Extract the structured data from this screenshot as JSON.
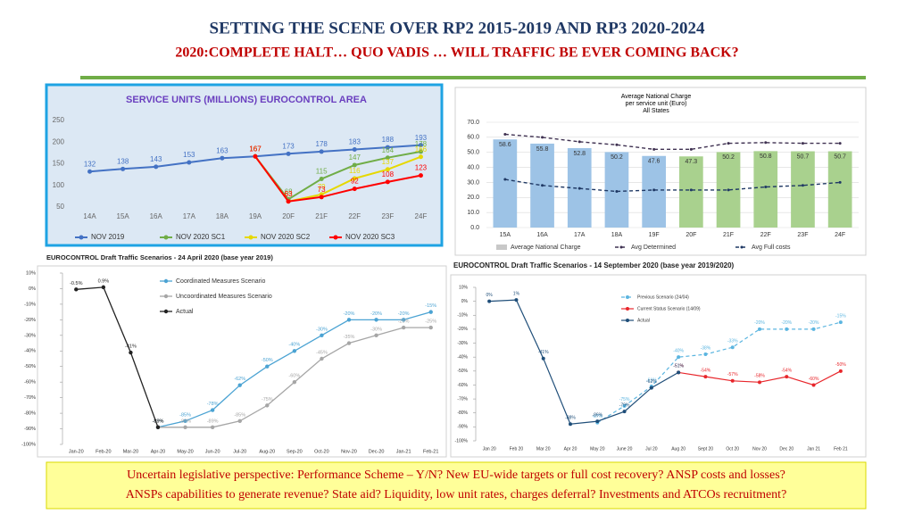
{
  "title": "SETTING THE SCENE OVER RP2 2015-2019 AND RP3 2020-2024",
  "subtitle": "2020:COMPLETE HALT… QUO VADIS … WILL TRAFFIC BE EVER COMING BACK?",
  "footer": [
    "Uncertain legislative perspective: Performance Scheme – Y/N? New EU-wide targets or full cost recovery? ANSP costs and losses?",
    "ANSPs capabilities to generate revenue? State aid? Liquidity, low unit rates, charges deferral? Investments and ATCOs recruitment?"
  ],
  "chart_data": [
    {
      "type": "line",
      "title": "SERVICE UNITS (MILLIONS) EUROCONTROL AREA",
      "categories": [
        "14A",
        "15A",
        "16A",
        "17A",
        "18A",
        "19A",
        "20F",
        "21F",
        "22F",
        "23F",
        "24F"
      ],
      "ylim": [
        50,
        250
      ],
      "yticks": [
        50,
        100,
        150,
        200,
        250
      ],
      "grid": false,
      "data_labels": true,
      "legend": "bottom",
      "series": [
        {
          "name": "NOV 2019",
          "color": "#4472c4",
          "marker": true,
          "values": [
            132,
            138,
            143,
            153,
            163,
            167,
            173,
            178,
            183,
            188,
            193
          ]
        },
        {
          "name": "NOV 2020 SC1",
          "color": "#70ad47",
          "marker": true,
          "values": [
            null,
            null,
            null,
            null,
            null,
            167,
            68,
            115,
            147,
            164,
            178
          ]
        },
        {
          "name": "NOV 2020 SC2",
          "color": "#e6d800",
          "marker": true,
          "values": [
            null,
            null,
            null,
            null,
            null,
            167,
            63,
            79,
            116,
            137,
            166
          ]
        },
        {
          "name": "NOV 2020 SC3",
          "color": "#ff0000",
          "marker": true,
          "values": [
            null,
            null,
            null,
            null,
            null,
            167,
            63,
            73,
            92,
            108,
            123
          ]
        }
      ]
    },
    {
      "type": "bar",
      "title": [
        "Average National Charge",
        "per service unit (Euro)",
        "All States"
      ],
      "categories": [
        "15A",
        "16A",
        "17A",
        "18A",
        "19F",
        "20F",
        "21F",
        "22F",
        "23F",
        "24F"
      ],
      "ylim": [
        0,
        70
      ],
      "yticks": [
        {
          "value": 0,
          "label": "0.0"
        },
        {
          "value": 10,
          "label": "10.0"
        },
        {
          "value": 20,
          "label": "20.0"
        },
        {
          "value": 30,
          "label": "30.0"
        },
        {
          "value": 40,
          "label": "40.0"
        },
        {
          "value": 50,
          "label": "50.0"
        },
        {
          "value": 60,
          "label": "60.0"
        },
        {
          "value": 70,
          "label": "70.0"
        }
      ],
      "grid": true,
      "data_labels": true,
      "legend": "bottom",
      "series": [
        {
          "name": "Average National Charge",
          "color": "#c8c8c8",
          "colors": [
            "#9dc3e6",
            "#9dc3e6",
            "#9dc3e6",
            "#9dc3e6",
            "#9dc3e6",
            "#a9d18e",
            "#a9d18e",
            "#a9d18e",
            "#a9d18e",
            "#a9d18e"
          ],
          "values": [
            58.6,
            55.8,
            52.8,
            50.2,
            47.6,
            47.3,
            50.2,
            50.8,
            50.7,
            50.7
          ]
        },
        {
          "name": "Avg Determined",
          "type": "line",
          "dash": true,
          "marker": true,
          "color": "#3f3151",
          "values": [
            62,
            60,
            57,
            55,
            52,
            52,
            56,
            56.5,
            56,
            56
          ]
        },
        {
          "name": "Avg Full costs",
          "type": "line",
          "dash": true,
          "marker": true,
          "color": "#1f3864",
          "values": [
            32,
            28,
            26,
            24,
            25,
            25,
            25,
            27,
            28,
            30
          ]
        }
      ]
    },
    {
      "type": "line",
      "title": "EUROCONTROL Draft Traffic Scenarios - 24 April 2020 (base year 2019)",
      "categories": [
        "Jan-20",
        "Feb-20",
        "Mar-20",
        "Apr-20",
        "May-20",
        "Jun-20",
        "Jul-20",
        "Aug-20",
        "Sep-20",
        "Oct-20",
        "Nov-20",
        "Dec-20",
        "Jan-21",
        "Feb-21"
      ],
      "ylim": [
        -100,
        10
      ],
      "yticks": [
        {
          "value": -100,
          "label": "-100%"
        },
        {
          "value": -90,
          "label": "-90%"
        },
        {
          "value": -80,
          "label": "-80%"
        },
        {
          "value": -70,
          "label": "-70%"
        },
        {
          "value": -60,
          "label": "-60%"
        },
        {
          "value": -50,
          "label": "-50%"
        },
        {
          "value": -40,
          "label": "-40%"
        },
        {
          "value": -30,
          "label": "-30%"
        },
        {
          "value": -20,
          "label": "-20%"
        },
        {
          "value": -10,
          "label": "-10%"
        },
        {
          "value": 0,
          "label": "0%"
        },
        {
          "value": 10,
          "label": "10%"
        }
      ],
      "grid": false,
      "data_labels": true,
      "legend": "top",
      "series": [
        {
          "name": "Coordinated Measures Scenario",
          "color": "#4ba3d3",
          "marker": true,
          "values": [
            null,
            null,
            null,
            -89,
            -85,
            -78,
            -62,
            -50,
            -40,
            -30,
            -20,
            -20,
            -20,
            -15
          ],
          "value_labels": [
            null,
            null,
            null,
            "-89%",
            "-85%",
            "-78%",
            "-62%",
            "-50%",
            "-40%",
            "-30%",
            "-20%",
            "-20%",
            "-20%",
            "-15%"
          ]
        },
        {
          "name": "Uncoordinated Measures Scenario",
          "color": "#a6a6a6",
          "marker": true,
          "values": [
            null,
            null,
            null,
            -89,
            -89,
            -89,
            -85,
            -75,
            -60,
            -45,
            -35,
            -30,
            -25,
            -25
          ],
          "value_labels": [
            null,
            null,
            null,
            "-89%",
            "-89%",
            "-89%",
            "-85%",
            "-75%",
            "-60%",
            "-45%",
            "-35%",
            "-30%",
            "-25%",
            "-25%"
          ]
        },
        {
          "name": "Actual",
          "color": "#222222",
          "marker": true,
          "values": [
            -0.5,
            0.9,
            -41,
            -89,
            null,
            null,
            null,
            null,
            null,
            null,
            null,
            null,
            null,
            null
          ],
          "value_labels": [
            "-0.5%",
            "0.9%",
            "-41%",
            "-89%",
            null,
            null,
            null,
            null,
            null,
            null,
            null,
            null,
            null,
            null
          ]
        }
      ]
    },
    {
      "type": "line",
      "title": "EUROCONTROL Draft Traffic Scenarios - 14 September 2020 (base year 2019/2020)",
      "categories": [
        "Jan 20",
        "Feb 20",
        "Mar 20",
        "Apr 20",
        "May 20",
        "June 20",
        "Jul 20",
        "Aug 20",
        "Sept 20",
        "Oct 20",
        "Nov 20",
        "Dec 20",
        "Jan 21",
        "Feb 21"
      ],
      "ylim": [
        -100,
        10
      ],
      "yticks": [
        {
          "value": -100,
          "label": "-100%"
        },
        {
          "value": -90,
          "label": "-90%"
        },
        {
          "value": -80,
          "label": "-80%"
        },
        {
          "value": -70,
          "label": "-70%"
        },
        {
          "value": -60,
          "label": "-60%"
        },
        {
          "value": -50,
          "label": "-50%"
        },
        {
          "value": -40,
          "label": "-40%"
        },
        {
          "value": -30,
          "label": "-30%"
        },
        {
          "value": -20,
          "label": "-20%"
        },
        {
          "value": -10,
          "label": "-10%"
        },
        {
          "value": 0,
          "label": "0%"
        },
        {
          "value": 10,
          "label": "10%"
        }
      ],
      "grid": false,
      "data_labels": true,
      "legend": "top",
      "series": [
        {
          "name": "Previous Scenario (24/04)",
          "color": "#5bb5e0",
          "dash": true,
          "marker": true,
          "values": [
            null,
            null,
            null,
            null,
            -87,
            -75,
            -61,
            -40,
            -38,
            -33,
            -20,
            -20,
            -20,
            -15
          ],
          "value_labels": [
            null,
            null,
            null,
            null,
            "-87%",
            "-75%",
            "-61%",
            "-40%",
            "-38%",
            "-33%",
            "-20%",
            "-20%",
            "-20%",
            "-15%"
          ]
        },
        {
          "name": "Current Status Scenario (14/09)",
          "color": "#e8262b",
          "marker": true,
          "values": [
            null,
            null,
            null,
            null,
            null,
            null,
            null,
            -51,
            -54,
            -57,
            -58,
            -54,
            -60,
            -50
          ],
          "value_labels": [
            null,
            null,
            null,
            null,
            null,
            null,
            null,
            "-51%",
            "-54%",
            "-57%",
            "-58%",
            "-54%",
            "-60%",
            "-50%"
          ]
        },
        {
          "name": "Actual",
          "color": "#1f4e79",
          "marker": true,
          "values": [
            0,
            1,
            -41,
            -88,
            -86,
            -79,
            -62,
            -51,
            null,
            null,
            null,
            null,
            null,
            null
          ],
          "value_labels": [
            "0%",
            "1%",
            "-41%",
            "-88%",
            "-86%",
            "-79%",
            "-62%",
            "-51%",
            null,
            null,
            null,
            null,
            null,
            null
          ]
        }
      ]
    }
  ]
}
